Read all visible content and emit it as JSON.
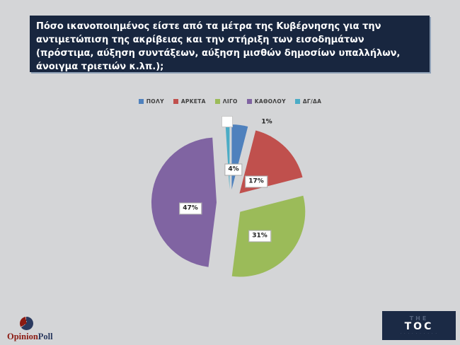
{
  "slide": {
    "title": "Πόσο ικανοποιημένος είστε από τα μέτρα της Κυβέρνησης για την αντιμετώπιση της ακρίβειας και την στήριξη των εισοδημάτων (πρόστιμα, αύξηση συντάξεων, αύξηση μισθών δημοσίων υπαλλήλων, άνοιγμα τριετιών κ.λπ.);"
  },
  "chart_data": {
    "type": "pie",
    "title": "Πόσο ικανοποιημένος είστε από τα μέτρα της Κυβέρνησης για την αντιμετώπιση της ακρίβειας και την στήριξη των εισοδημάτων (πρόστιμα, αύξηση συντάξεων, αύξηση μισθών δημοσίων υπαλλήλων, άνοιγμα τριετιών κ.λπ.);",
    "exploded": true,
    "direction": "clockwise",
    "start_angle_deg": 0,
    "legend_position": "top-center",
    "categories": [
      "ΠΟΛΥ",
      "ΑΡΚΕΤΑ",
      "ΛΙΓΟ",
      "ΚΑΘΟΛΟΥ",
      "ΔΓ/ΔΑ"
    ],
    "values": [
      4,
      17,
      31,
      47,
      1
    ],
    "slices": [
      {
        "label": "ΠΟΛΥ",
        "value": 4,
        "value_label": "4%",
        "color": "#4F81BD"
      },
      {
        "label": "ΑΡΚΕΤΑ",
        "value": 17,
        "value_label": "17%",
        "color": "#C0504D"
      },
      {
        "label": "ΛΙΓΟ",
        "value": 31,
        "value_label": "31%",
        "color": "#9BBB59"
      },
      {
        "label": "ΚΑΘΟΛΟΥ",
        "value": 47,
        "value_label": "47%",
        "color": "#8064A2"
      },
      {
        "label": "ΔΓ/ΔΑ",
        "value": 1,
        "value_label": "1%",
        "color": "#4BACC6"
      }
    ]
  },
  "footer": {
    "opinion_poll": {
      "part1": "Opinion",
      "part2": "Poll",
      "color1": "#8B1A12",
      "color2": "#2B3A5F"
    },
    "toc": {
      "line1": "THE",
      "line2": "TOC",
      "tagline": "· · · · · · · · · ·"
    }
  },
  "colors": {
    "background": "#D4D5D7",
    "title_box": "#18263F",
    "title_text": "#FFFFFF"
  }
}
